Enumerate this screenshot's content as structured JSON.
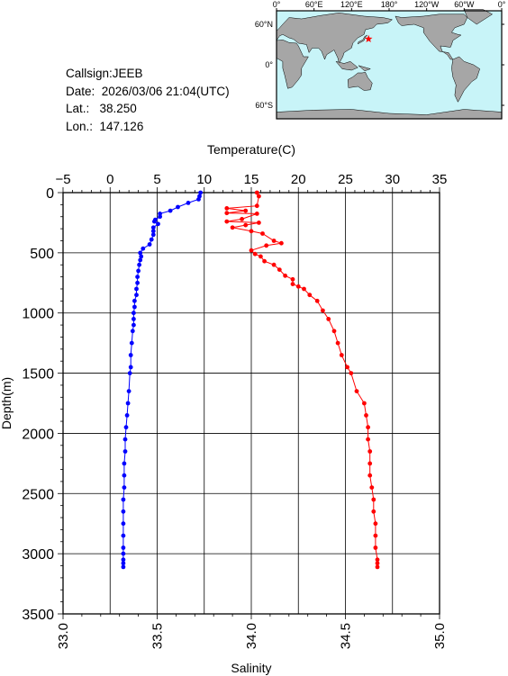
{
  "info": {
    "callsign_line": "Callsign:JEEB",
    "date_line": "Date:  2026/03/06 21:04(UTC)",
    "lat_line": "Lat.:   38.250",
    "lon_line": "Lon.:  147.126"
  },
  "map": {
    "lon_labels": [
      "0°",
      "60°E",
      "120°E",
      "180°",
      "120°W",
      "60°W",
      "0°"
    ],
    "lat_labels": [
      "60°N",
      "0°",
      "60°S"
    ],
    "ocean_color": "#c8f4f8",
    "land_color": "#a6a6a6",
    "marker_color": "#ff0000",
    "marker_lat": 38.25,
    "marker_lon": 147.126
  },
  "chart_data": {
    "type": "line",
    "title": "",
    "ylabel": "Depth(m)",
    "ylim": [
      0,
      3500
    ],
    "y_inverted": true,
    "y_ticks": [
      0,
      500,
      1000,
      1500,
      2000,
      2500,
      3000,
      3500
    ],
    "grid": true,
    "top_axis": {
      "label": "Temperature(C)",
      "range": [
        -5,
        35
      ],
      "ticks": [
        -5,
        0,
        5,
        10,
        15,
        20,
        25,
        30,
        35
      ]
    },
    "bottom_axis": {
      "label": "Salinity",
      "range": [
        33.0,
        35.0
      ],
      "ticks": [
        "33.0",
        "33.5",
        "34.0",
        "34.5",
        "35.0"
      ]
    },
    "series": [
      {
        "variable": "temperature",
        "color": "#0000ff",
        "points": [
          [
            9.6,
            0
          ],
          [
            9.5,
            30
          ],
          [
            9.4,
            55
          ],
          [
            8.3,
            85
          ],
          [
            7.2,
            120
          ],
          [
            6.4,
            150
          ],
          [
            5.3,
            175
          ],
          [
            5.3,
            200
          ],
          [
            4.8,
            225
          ],
          [
            4.7,
            240
          ],
          [
            5.1,
            260
          ],
          [
            4.6,
            290
          ],
          [
            4.6,
            320
          ],
          [
            4.6,
            350
          ],
          [
            4.4,
            390
          ],
          [
            4.2,
            430
          ],
          [
            3.5,
            465
          ],
          [
            3.2,
            500
          ],
          [
            3.3,
            530
          ],
          [
            3.2,
            560
          ],
          [
            3.1,
            600
          ],
          [
            3.0,
            650
          ],
          [
            2.9,
            700
          ],
          [
            2.9,
            750
          ],
          [
            2.8,
            800
          ],
          [
            2.8,
            850
          ],
          [
            2.6,
            900
          ],
          [
            2.6,
            950
          ],
          [
            2.5,
            1000
          ],
          [
            2.5,
            1050
          ],
          [
            2.5,
            1100
          ],
          [
            2.4,
            1150
          ],
          [
            2.3,
            1250
          ],
          [
            2.2,
            1350
          ],
          [
            2.2,
            1450
          ],
          [
            2.1,
            1500
          ],
          [
            2.0,
            1650
          ],
          [
            1.9,
            1750
          ],
          [
            1.8,
            1850
          ],
          [
            1.7,
            1950
          ],
          [
            1.6,
            2050
          ],
          [
            1.6,
            2150
          ],
          [
            1.5,
            2250
          ],
          [
            1.5,
            2350
          ],
          [
            1.5,
            2450
          ],
          [
            1.4,
            2550
          ],
          [
            1.4,
            2650
          ],
          [
            1.4,
            2750
          ],
          [
            1.4,
            2850
          ],
          [
            1.4,
            2950
          ],
          [
            1.4,
            3000
          ],
          [
            1.4,
            3050
          ],
          [
            1.4,
            3080
          ],
          [
            1.4,
            3110
          ]
        ]
      },
      {
        "variable": "salinity",
        "color": "#ff0000",
        "points": [
          [
            34.03,
            0
          ],
          [
            34.04,
            30
          ],
          [
            34.03,
            110
          ],
          [
            33.87,
            130
          ],
          [
            33.97,
            150
          ],
          [
            33.87,
            170
          ],
          [
            34.03,
            175
          ],
          [
            33.95,
            220
          ],
          [
            33.87,
            240
          ],
          [
            34.04,
            250
          ],
          [
            33.97,
            270
          ],
          [
            33.9,
            290
          ],
          [
            34.0,
            320
          ],
          [
            34.06,
            340
          ],
          [
            34.12,
            400
          ],
          [
            34.16,
            420
          ],
          [
            34.08,
            440
          ],
          [
            34.0,
            480
          ],
          [
            34.02,
            510
          ],
          [
            34.05,
            530
          ],
          [
            34.07,
            570
          ],
          [
            34.12,
            600
          ],
          [
            34.15,
            640
          ],
          [
            34.18,
            690
          ],
          [
            34.22,
            720
          ],
          [
            34.22,
            760
          ],
          [
            34.25,
            780
          ],
          [
            34.28,
            800
          ],
          [
            34.31,
            850
          ],
          [
            34.35,
            900
          ],
          [
            34.38,
            980
          ],
          [
            34.41,
            1050
          ],
          [
            34.44,
            1150
          ],
          [
            34.46,
            1250
          ],
          [
            34.48,
            1350
          ],
          [
            34.51,
            1450
          ],
          [
            34.53,
            1500
          ],
          [
            34.56,
            1650
          ],
          [
            34.6,
            1750
          ],
          [
            34.61,
            1850
          ],
          [
            34.62,
            1950
          ],
          [
            34.62,
            2050
          ],
          [
            34.63,
            2150
          ],
          [
            34.63,
            2250
          ],
          [
            34.63,
            2350
          ],
          [
            34.64,
            2450
          ],
          [
            34.65,
            2550
          ],
          [
            34.65,
            2650
          ],
          [
            34.66,
            2750
          ],
          [
            34.66,
            2850
          ],
          [
            34.66,
            2950
          ],
          [
            34.67,
            3050
          ],
          [
            34.67,
            3080
          ],
          [
            34.67,
            3110
          ]
        ]
      }
    ]
  }
}
